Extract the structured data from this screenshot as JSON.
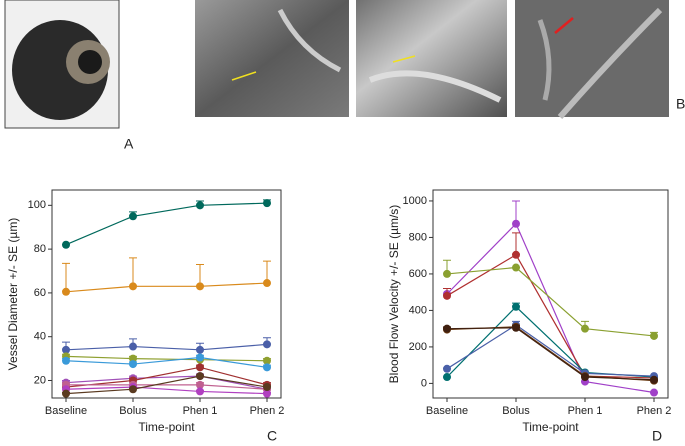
{
  "panel_labels": [
    "A",
    "B",
    "C",
    "D"
  ],
  "chart_data": [
    {
      "type": "line",
      "categories": [
        "Baseline",
        "Bolus",
        "Phen 1",
        "Phen 2"
      ],
      "y_label": "Vessel Diameter +/- SE (µm)",
      "x_label": "Time-point",
      "ylim": [
        12,
        107
      ],
      "yticks": [
        20,
        40,
        60,
        80,
        100
      ],
      "series": [
        {
          "color": "#00695c",
          "values": [
            82,
            95,
            100,
            101
          ],
          "errors": [
            0,
            2,
            2,
            1.5
          ]
        },
        {
          "color": "#d98a1c",
          "values": [
            60.5,
            63,
            63,
            64.5
          ],
          "errors": [
            13,
            13,
            10,
            10
          ]
        },
        {
          "color": "#4a5fa8",
          "values": [
            34,
            35.5,
            34,
            36.5
          ],
          "errors": [
            3.5,
            3.5,
            3,
            3
          ]
        },
        {
          "color": "#8fa030",
          "values": [
            31,
            30,
            29.5,
            29
          ],
          "errors": [
            1,
            1,
            1,
            1
          ]
        },
        {
          "color": "#3a9ad9",
          "values": [
            29,
            27.5,
            30.5,
            26
          ],
          "errors": [
            1,
            1,
            1,
            1
          ]
        },
        {
          "color": "#a050b8",
          "values": [
            19,
            21,
            22,
            16
          ],
          "errors": [
            1,
            1,
            1,
            1
          ]
        },
        {
          "color": "#a03030",
          "values": [
            17,
            20,
            26,
            18
          ],
          "errors": [
            1,
            1,
            1,
            1
          ]
        },
        {
          "color": "#c06090",
          "values": [
            18,
            18,
            18,
            16
          ],
          "errors": [
            1,
            1,
            1,
            1
          ]
        },
        {
          "color": "#b040c0",
          "values": [
            16,
            17,
            15,
            14
          ],
          "errors": [
            0.5,
            0.5,
            0.5,
            0.5
          ]
        },
        {
          "color": "#5a3a20",
          "values": [
            14,
            16,
            22,
            17
          ],
          "errors": [
            0.5,
            0.5,
            0.5,
            0.5
          ]
        }
      ]
    },
    {
      "type": "line",
      "categories": [
        "Baseline",
        "Bolus",
        "Phen 1",
        "Phen 2"
      ],
      "y_label": "Blood Flow Velocity +/- SE (µm/s)",
      "x_label": "Time-point",
      "ylim": [
        -80,
        1060
      ],
      "yticks": [
        0,
        200,
        400,
        600,
        800,
        1000
      ],
      "series": [
        {
          "color": "#a040c8",
          "values": [
            490,
            875,
            10,
            -50
          ],
          "errors": [
            30,
            125,
            0,
            0
          ]
        },
        {
          "color": "#b03030",
          "values": [
            480,
            705,
            40,
            30
          ],
          "errors": [
            40,
            120,
            0,
            0
          ]
        },
        {
          "color": "#8aa030",
          "values": [
            600,
            635,
            300,
            260
          ],
          "errors": [
            75,
            0,
            40,
            20
          ]
        },
        {
          "color": "#007070",
          "values": [
            35,
            420,
            60,
            35
          ],
          "errors": [
            0,
            20,
            0,
            0
          ]
        },
        {
          "color": "#4a60a8",
          "values": [
            80,
            320,
            55,
            40
          ],
          "errors": [
            0,
            20,
            0,
            0
          ]
        },
        {
          "color": "#6b3a10",
          "values": [
            295,
            310,
            40,
            15
          ],
          "errors": [
            10,
            10,
            0,
            0
          ]
        },
        {
          "color": "#402010",
          "values": [
            300,
            305,
            35,
            20
          ],
          "errors": [
            10,
            10,
            0,
            0
          ]
        }
      ]
    }
  ]
}
